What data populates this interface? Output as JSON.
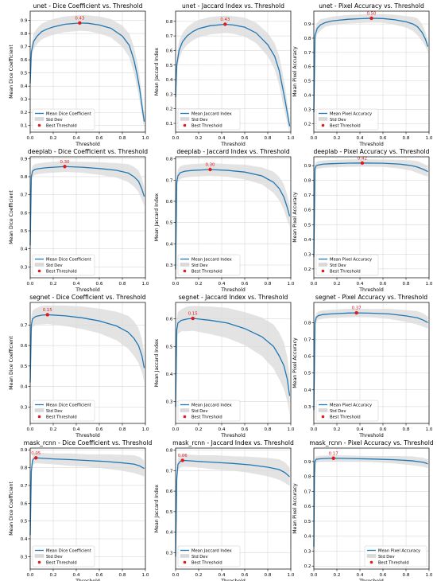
{
  "legend_labels": {
    "std": "Std Dev",
    "best": "Best Threshold"
  },
  "colors": {
    "line": "#1f77b4",
    "band": "#d9d9d9",
    "best": "#e31a1c",
    "grid": "#b0b0b0"
  },
  "chart_data": [
    {
      "type": "line",
      "title": "unet - Dice Coefficient vs. Threshold",
      "xlabel": "Threshold",
      "ylabel": "Mean Dice Coefficient",
      "xlim": [
        0,
        1
      ],
      "ylim": [
        0.05,
        0.97
      ],
      "yticks": [
        "0.1",
        "0.2",
        "0.3",
        "0.4",
        "0.5",
        "0.6",
        "0.7",
        "0.8",
        "0.9"
      ],
      "xticks": [
        "0.0",
        "0.2",
        "0.4",
        "0.6",
        "0.8",
        "1.0"
      ],
      "series": [
        {
          "name": "Mean Dice Coefficient",
          "x": [
            0,
            0.01,
            0.03,
            0.06,
            0.1,
            0.15,
            0.2,
            0.3,
            0.43,
            0.5,
            0.6,
            0.7,
            0.8,
            0.86,
            0.9,
            0.93,
            0.95,
            0.97,
            0.99
          ],
          "y": [
            0.42,
            0.66,
            0.74,
            0.78,
            0.815,
            0.835,
            0.85,
            0.87,
            0.88,
            0.878,
            0.865,
            0.84,
            0.78,
            0.71,
            0.6,
            0.48,
            0.38,
            0.25,
            0.13
          ]
        }
      ],
      "std": [
        0.01,
        0.05,
        0.06,
        0.06,
        0.06,
        0.06,
        0.06,
        0.06,
        0.06,
        0.06,
        0.065,
        0.07,
        0.08,
        0.09,
        0.1,
        0.1,
        0.09,
        0.07,
        0.05
      ],
      "best": {
        "x": 0.43,
        "y": 0.88,
        "label": "0.43"
      },
      "legend": "bottom-left"
    },
    {
      "type": "line",
      "title": "unet - Jaccard Index vs. Threshold",
      "xlabel": "Threshold",
      "ylabel": "Mean Jaccard Index",
      "xlim": [
        0,
        1
      ],
      "ylim": [
        0.04,
        0.87
      ],
      "yticks": [
        "0.1",
        "0.2",
        "0.3",
        "0.4",
        "0.5",
        "0.6",
        "0.7",
        "0.8"
      ],
      "xticks": [
        "0.0",
        "0.2",
        "0.4",
        "0.6",
        "0.8",
        "1.0"
      ],
      "series": [
        {
          "name": "Mean Jaccard Index",
          "x": [
            0,
            0.01,
            0.03,
            0.06,
            0.1,
            0.15,
            0.2,
            0.3,
            0.43,
            0.5,
            0.6,
            0.7,
            0.8,
            0.86,
            0.9,
            0.93,
            0.95,
            0.97,
            0.99
          ],
          "y": [
            0.28,
            0.5,
            0.6,
            0.66,
            0.7,
            0.73,
            0.75,
            0.77,
            0.78,
            0.775,
            0.76,
            0.72,
            0.64,
            0.56,
            0.46,
            0.34,
            0.26,
            0.17,
            0.08
          ]
        }
      ],
      "std": [
        0.01,
        0.05,
        0.06,
        0.06,
        0.06,
        0.06,
        0.06,
        0.06,
        0.06,
        0.06,
        0.065,
        0.07,
        0.08,
        0.09,
        0.1,
        0.1,
        0.09,
        0.07,
        0.05
      ],
      "best": {
        "x": 0.43,
        "y": 0.78,
        "label": "0.43"
      },
      "legend": "bottom-left"
    },
    {
      "type": "line",
      "title": "unet - Pixel Accuracy vs. Threshold",
      "xlabel": "Threshold",
      "ylabel": "Mean Pixel Accuracy",
      "xlim": [
        0,
        1
      ],
      "ylim": [
        0.14,
        0.99
      ],
      "yticks": [
        "0.2",
        "0.3",
        "0.4",
        "0.5",
        "0.6",
        "0.7",
        "0.8",
        "0.9"
      ],
      "xticks": [
        "0.0",
        "0.2",
        "0.4",
        "0.6",
        "0.8",
        "1.0"
      ],
      "series": [
        {
          "name": "Mean Pixel Accuracy",
          "x": [
            0,
            0.01,
            0.03,
            0.06,
            0.1,
            0.15,
            0.2,
            0.3,
            0.4,
            0.5,
            0.6,
            0.7,
            0.8,
            0.86,
            0.9,
            0.94,
            0.97,
            0.99
          ],
          "y": [
            0.28,
            0.82,
            0.87,
            0.895,
            0.91,
            0.92,
            0.925,
            0.933,
            0.937,
            0.94,
            0.938,
            0.93,
            0.915,
            0.9,
            0.88,
            0.84,
            0.79,
            0.74
          ]
        }
      ],
      "std": [
        0.01,
        0.04,
        0.04,
        0.04,
        0.03,
        0.03,
        0.03,
        0.03,
        0.03,
        0.03,
        0.03,
        0.035,
        0.04,
        0.05,
        0.06,
        0.06,
        0.05,
        0.04
      ],
      "best": {
        "x": 0.5,
        "y": 0.94,
        "label": "0.50"
      },
      "legend": "bottom-left"
    },
    {
      "type": "line",
      "title": "deeplab - Dice Coefficient vs. Threshold",
      "xlabel": "Threshold",
      "ylabel": "Mean Dice Coefficient",
      "xlim": [
        0,
        1
      ],
      "ylim": [
        0.24,
        0.91
      ],
      "yticks": [
        "0.3",
        "0.4",
        "0.5",
        "0.6",
        "0.7",
        "0.8",
        "0.9"
      ],
      "xticks": [
        "0.0",
        "0.2",
        "0.4",
        "0.6",
        "0.8",
        "1.0"
      ],
      "series": [
        {
          "name": "Mean Dice Coefficient",
          "x": [
            0,
            0.01,
            0.02,
            0.04,
            0.08,
            0.15,
            0.3,
            0.45,
            0.6,
            0.75,
            0.85,
            0.9,
            0.94,
            0.97,
            0.99
          ],
          "y": [
            0.42,
            0.8,
            0.83,
            0.84,
            0.845,
            0.85,
            0.856,
            0.852,
            0.845,
            0.835,
            0.82,
            0.8,
            0.775,
            0.73,
            0.69
          ]
        }
      ],
      "std": [
        0.01,
        0.03,
        0.03,
        0.03,
        0.03,
        0.03,
        0.03,
        0.03,
        0.035,
        0.04,
        0.05,
        0.055,
        0.06,
        0.06,
        0.05
      ],
      "best": {
        "x": 0.3,
        "y": 0.856,
        "label": "0.30"
      },
      "legend": "bottom-left"
    },
    {
      "type": "line",
      "title": "deeplab - Jaccard Index vs. Threshold",
      "xlabel": "Threshold",
      "ylabel": "Mean Jaccard Index",
      "xlim": [
        0,
        1
      ],
      "ylim": [
        0.24,
        0.81
      ],
      "yticks": [
        "0.3",
        "0.4",
        "0.5",
        "0.6",
        "0.7",
        "0.8"
      ],
      "xticks": [
        "0.0",
        "0.2",
        "0.4",
        "0.6",
        "0.8",
        "1.0"
      ],
      "series": [
        {
          "name": "Mean Jaccard Index",
          "x": [
            0,
            0.01,
            0.02,
            0.04,
            0.08,
            0.15,
            0.3,
            0.45,
            0.6,
            0.75,
            0.85,
            0.9,
            0.94,
            0.97,
            0.99
          ],
          "y": [
            0.28,
            0.69,
            0.72,
            0.735,
            0.742,
            0.746,
            0.75,
            0.746,
            0.738,
            0.72,
            0.69,
            0.66,
            0.62,
            0.57,
            0.53
          ]
        }
      ],
      "std": [
        0.01,
        0.03,
        0.03,
        0.03,
        0.03,
        0.03,
        0.03,
        0.03,
        0.035,
        0.04,
        0.05,
        0.055,
        0.06,
        0.06,
        0.05
      ],
      "best": {
        "x": 0.3,
        "y": 0.75,
        "label": "0.30"
      },
      "legend": "bottom-left"
    },
    {
      "type": "line",
      "title": "deeplab - Pixel Accuracy vs. Threshold",
      "xlabel": "Threshold",
      "ylabel": "Mean Pixel Accuracy",
      "xlim": [
        0,
        1
      ],
      "ylim": [
        0.14,
        0.96
      ],
      "yticks": [
        "0.2",
        "0.3",
        "0.4",
        "0.5",
        "0.6",
        "0.7",
        "0.8",
        "0.9"
      ],
      "xticks": [
        "0.0",
        "0.2",
        "0.4",
        "0.6",
        "0.8",
        "1.0"
      ],
      "series": [
        {
          "name": "Mean Pixel Accuracy",
          "x": [
            0,
            0.01,
            0.02,
            0.04,
            0.08,
            0.15,
            0.3,
            0.42,
            0.6,
            0.75,
            0.85,
            0.9,
            0.95,
            0.99
          ],
          "y": [
            0.28,
            0.88,
            0.9,
            0.905,
            0.91,
            0.913,
            0.917,
            0.918,
            0.916,
            0.91,
            0.9,
            0.89,
            0.875,
            0.86
          ]
        }
      ],
      "std": [
        0.01,
        0.025,
        0.025,
        0.025,
        0.025,
        0.025,
        0.025,
        0.025,
        0.025,
        0.03,
        0.035,
        0.04,
        0.04,
        0.035
      ],
      "best": {
        "x": 0.42,
        "y": 0.918,
        "label": "0.42"
      },
      "legend": "bottom-left"
    },
    {
      "type": "line",
      "title": "segnet - Dice Coefficient vs. Threshold",
      "xlabel": "Threshold",
      "ylabel": "Mean Dice Coefficient",
      "xlim": [
        0,
        1
      ],
      "ylim": [
        0.22,
        0.81
      ],
      "yticks": [
        "0.3",
        "0.4",
        "0.5",
        "0.6",
        "0.7"
      ],
      "xticks": [
        "0.0",
        "0.2",
        "0.4",
        "0.6",
        "0.8",
        "1.0"
      ],
      "series": [
        {
          "name": "Mean Dice Coefficient",
          "x": [
            0,
            0.01,
            0.02,
            0.05,
            0.1,
            0.15,
            0.3,
            0.45,
            0.6,
            0.75,
            0.85,
            0.9,
            0.94,
            0.97,
            0.99
          ],
          "y": [
            0.42,
            0.7,
            0.73,
            0.742,
            0.748,
            0.75,
            0.745,
            0.735,
            0.72,
            0.695,
            0.665,
            0.635,
            0.6,
            0.55,
            0.49
          ]
        }
      ],
      "std": [
        0.01,
        0.04,
        0.04,
        0.04,
        0.045,
        0.045,
        0.05,
        0.055,
        0.06,
        0.07,
        0.08,
        0.085,
        0.085,
        0.08,
        0.07
      ],
      "best": {
        "x": 0.15,
        "y": 0.75,
        "label": "0.15"
      },
      "legend": "bottom-left"
    },
    {
      "type": "line",
      "title": "segnet - Jaccard Index vs. Threshold",
      "xlabel": "Threshold",
      "ylabel": "Mean Jaccard Index",
      "xlim": [
        0,
        1
      ],
      "ylim": [
        0.22,
        0.66
      ],
      "yticks": [
        "0.3",
        "0.4",
        "0.5",
        "0.6"
      ],
      "xticks": [
        "0.0",
        "0.2",
        "0.4",
        "0.6",
        "0.8",
        "1.0"
      ],
      "series": [
        {
          "name": "Mean Jaccard Index",
          "x": [
            0,
            0.01,
            0.02,
            0.05,
            0.1,
            0.15,
            0.3,
            0.45,
            0.6,
            0.75,
            0.85,
            0.9,
            0.94,
            0.97,
            0.99
          ],
          "y": [
            0.28,
            0.56,
            0.585,
            0.595,
            0.6,
            0.602,
            0.595,
            0.585,
            0.565,
            0.535,
            0.5,
            0.465,
            0.43,
            0.38,
            0.32
          ]
        }
      ],
      "std": [
        0.01,
        0.04,
        0.04,
        0.04,
        0.045,
        0.045,
        0.05,
        0.055,
        0.06,
        0.07,
        0.08,
        0.085,
        0.085,
        0.08,
        0.07
      ],
      "best": {
        "x": 0.15,
        "y": 0.602,
        "label": "0.15"
      },
      "legend": "bottom-left"
    },
    {
      "type": "line",
      "title": "segnet - Pixel Accuracy vs. Threshold",
      "xlabel": "Threshold",
      "ylabel": "Mean Pixel Accuracy",
      "xlim": [
        0,
        1
      ],
      "ylim": [
        0.2,
        0.92
      ],
      "yticks": [
        "0.3",
        "0.4",
        "0.5",
        "0.6",
        "0.7",
        "0.8"
      ],
      "xticks": [
        "0.0",
        "0.2",
        "0.4",
        "0.6",
        "0.8",
        "1.0"
      ],
      "series": [
        {
          "name": "Mean Pixel Accuracy",
          "x": [
            0,
            0.01,
            0.02,
            0.04,
            0.08,
            0.15,
            0.3,
            0.37,
            0.5,
            0.65,
            0.8,
            0.9,
            0.95,
            0.99
          ],
          "y": [
            0.28,
            0.8,
            0.83,
            0.842,
            0.848,
            0.852,
            0.857,
            0.858,
            0.856,
            0.852,
            0.84,
            0.828,
            0.815,
            0.8
          ]
        }
      ],
      "std": [
        0.01,
        0.025,
        0.025,
        0.025,
        0.025,
        0.025,
        0.025,
        0.025,
        0.025,
        0.03,
        0.035,
        0.04,
        0.04,
        0.035
      ],
      "best": {
        "x": 0.37,
        "y": 0.858,
        "label": "0.37"
      },
      "legend": "bottom-left"
    },
    {
      "type": "line",
      "title": "mask_rcnn - Dice Coefficient vs. Threshold",
      "xlabel": "Threshold",
      "ylabel": "Mean Dice Coefficient",
      "xlim": [
        0,
        1
      ],
      "ylim": [
        0.23,
        0.91
      ],
      "yticks": [
        "0.3",
        "0.4",
        "0.5",
        "0.6",
        "0.7",
        "0.8",
        "0.9"
      ],
      "xticks": [
        "0.0",
        "0.2",
        "0.4",
        "0.6",
        "0.8",
        "1.0"
      ],
      "series": [
        {
          "name": "Mean Dice Coefficient",
          "x": [
            0,
            0.01,
            0.02,
            0.03,
            0.05,
            0.1,
            0.2,
            0.35,
            0.5,
            0.65,
            0.8,
            0.9,
            0.95,
            0.99
          ],
          "y": [
            0.42,
            0.78,
            0.84,
            0.85,
            0.855,
            0.853,
            0.849,
            0.845,
            0.84,
            0.835,
            0.827,
            0.82,
            0.81,
            0.795
          ]
        }
      ],
      "std": [
        0.01,
        0.03,
        0.03,
        0.03,
        0.03,
        0.03,
        0.03,
        0.035,
        0.035,
        0.04,
        0.045,
        0.05,
        0.05,
        0.045
      ],
      "best": {
        "x": 0.05,
        "y": 0.855,
        "label": "0.05"
      },
      "legend": "bottom-left"
    },
    {
      "type": "line",
      "title": "mask_rcnn - Jaccard Index vs. Threshold",
      "xlabel": "Threshold",
      "ylabel": "Mean Jaccard Index",
      "xlim": [
        0,
        1
      ],
      "ylim": [
        0.22,
        0.81
      ],
      "yticks": [
        "0.3",
        "0.4",
        "0.5",
        "0.6",
        "0.7",
        "0.8"
      ],
      "xticks": [
        "0.0",
        "0.2",
        "0.4",
        "0.6",
        "0.8",
        "1.0"
      ],
      "series": [
        {
          "name": "Mean Jaccard Index",
          "x": [
            0,
            0.01,
            0.02,
            0.04,
            0.06,
            0.1,
            0.2,
            0.35,
            0.5,
            0.65,
            0.8,
            0.9,
            0.95,
            0.99
          ],
          "y": [
            0.28,
            0.66,
            0.73,
            0.745,
            0.75,
            0.749,
            0.745,
            0.74,
            0.735,
            0.728,
            0.717,
            0.705,
            0.69,
            0.67
          ]
        }
      ],
      "std": [
        0.01,
        0.03,
        0.03,
        0.03,
        0.03,
        0.03,
        0.03,
        0.035,
        0.035,
        0.04,
        0.045,
        0.05,
        0.05,
        0.045
      ],
      "best": {
        "x": 0.06,
        "y": 0.75,
        "label": "0.06"
      },
      "legend": "bottom-left"
    },
    {
      "type": "line",
      "title": "mask_rcnn - Pixel Accuracy vs. Threshold",
      "xlabel": "Threshold",
      "ylabel": "Mean Pixel Accuracy",
      "xlim": [
        0,
        1
      ],
      "ylim": [
        0.18,
        0.99
      ],
      "yticks": [
        "0.2",
        "0.3",
        "0.4",
        "0.5",
        "0.6",
        "0.7",
        "0.8",
        "0.9"
      ],
      "xticks": [
        "0.0",
        "0.2",
        "0.4",
        "0.6",
        "0.8",
        "1.0"
      ],
      "series": [
        {
          "name": "Mean Pixel Accuracy",
          "x": [
            0,
            0.005,
            0.01,
            0.02,
            0.05,
            0.1,
            0.17,
            0.3,
            0.5,
            0.7,
            0.85,
            0.95,
            0.99
          ],
          "y": [
            0.33,
            0.8,
            0.9,
            0.915,
            0.918,
            0.92,
            0.922,
            0.92,
            0.917,
            0.912,
            0.905,
            0.895,
            0.885
          ]
        }
      ],
      "std": [
        0.01,
        0.02,
        0.02,
        0.02,
        0.02,
        0.02,
        0.02,
        0.02,
        0.02,
        0.025,
        0.03,
        0.03,
        0.03
      ],
      "best": {
        "x": 0.17,
        "y": 0.922,
        "label": "0.17"
      },
      "legend": "bottom-right"
    }
  ]
}
